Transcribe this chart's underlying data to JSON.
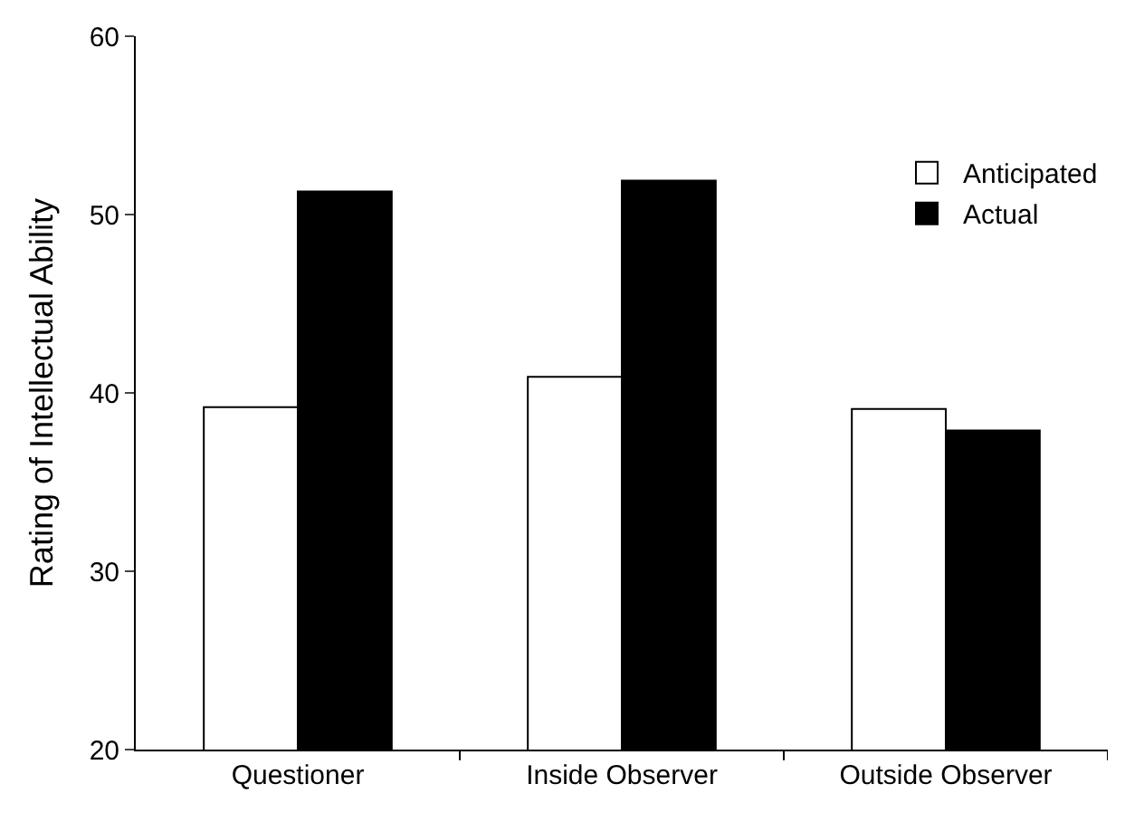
{
  "chart_data": {
    "type": "bar",
    "ylabel": "Rating of Intellectual Ability",
    "categories": [
      "Questioner",
      "Inside Observer",
      "Outside Observer"
    ],
    "series": [
      {
        "name": "Anticipated",
        "color": "#ffffff",
        "values": [
          39.2,
          40.9,
          39.1
        ]
      },
      {
        "name": "Actual",
        "color": "#000000",
        "values": [
          51.3,
          51.9,
          37.9
        ]
      }
    ],
    "ylim": [
      20,
      60
    ],
    "yticks": [
      20,
      30,
      40,
      50,
      60
    ],
    "grid": false,
    "legend": "top right"
  }
}
